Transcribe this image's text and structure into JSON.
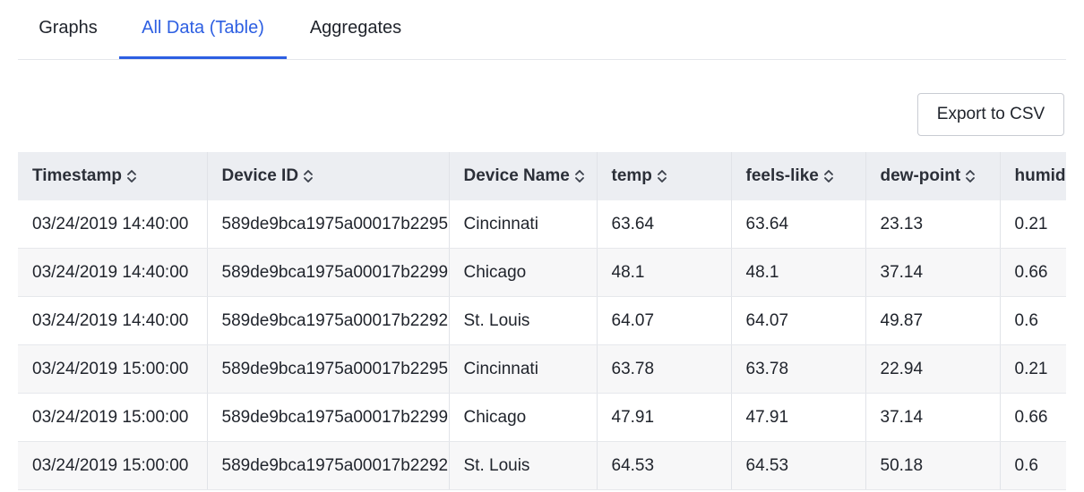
{
  "tabs": [
    {
      "label": "Graphs",
      "active": false
    },
    {
      "label": "All Data (Table)",
      "active": true
    },
    {
      "label": "Aggregates",
      "active": false
    }
  ],
  "toolbar": {
    "export_label": "Export to CSV"
  },
  "table": {
    "columns": [
      "Timestamp",
      "Device ID",
      "Device Name",
      "temp",
      "feels-like",
      "dew-point",
      "humid"
    ],
    "rows": [
      [
        "03/24/2019 14:40:00",
        "589de9bca1975a00017b2295",
        "Cincinnati",
        "63.64",
        "63.64",
        "23.13",
        "0.21"
      ],
      [
        "03/24/2019 14:40:00",
        "589de9bca1975a00017b2299",
        "Chicago",
        "48.1",
        "48.1",
        "37.14",
        "0.66"
      ],
      [
        "03/24/2019 14:40:00",
        "589de9bca1975a00017b2292",
        "St. Louis",
        "64.07",
        "64.07",
        "49.87",
        "0.6"
      ],
      [
        "03/24/2019 15:00:00",
        "589de9bca1975a00017b2295",
        "Cincinnati",
        "63.78",
        "63.78",
        "22.94",
        "0.21"
      ],
      [
        "03/24/2019 15:00:00",
        "589de9bca1975a00017b2299",
        "Chicago",
        "47.91",
        "47.91",
        "37.14",
        "0.66"
      ],
      [
        "03/24/2019 15:00:00",
        "589de9bca1975a00017b2292",
        "St. Louis",
        "64.53",
        "64.53",
        "50.18",
        "0.6"
      ]
    ]
  },
  "colors": {
    "accent": "#2d5fe2",
    "header_bg": "#eceef2",
    "alt_row_bg": "#f7f7f8"
  },
  "icons": {
    "sort": "sort-arrows-icon"
  }
}
